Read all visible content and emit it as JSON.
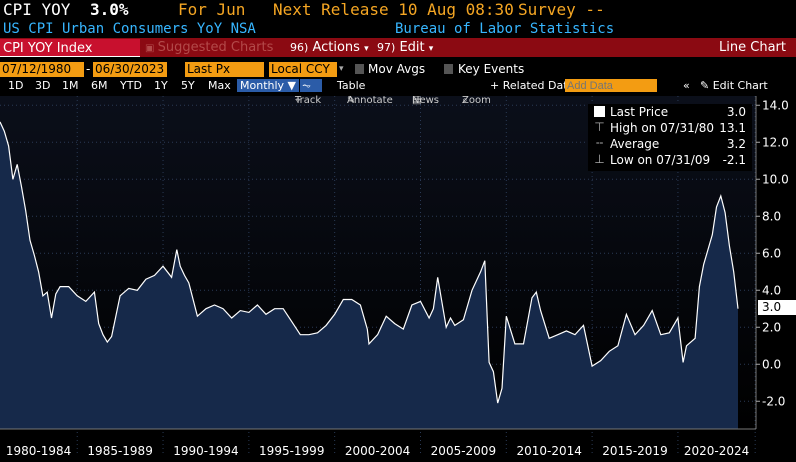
{
  "header": {
    "ticker": "CPI YOY",
    "value": "3.0%",
    "for_label": "For Jun",
    "next_release": "Next Release 10 Aug 08:30",
    "survey": "Survey --",
    "description": "US CPI Urban Consumers YoY NSA",
    "source": "Bureau of Labor Statistics"
  },
  "toolbar": {
    "security": "CPI YOY Index",
    "suggested": "Suggested Charts",
    "actions_num": "96)",
    "actions_label": "Actions",
    "edit_num": "97)",
    "edit_label": "Edit",
    "chart_type": "Line Chart"
  },
  "controls": {
    "start_date": "07/12/1980",
    "end_date": "06/30/2023",
    "field": "Last Px",
    "currency": "Local CCY",
    "mov_avgs": "Mov Avgs",
    "key_events": "Key Events"
  },
  "periods": [
    "1D",
    "3D",
    "1M",
    "6M",
    "YTD",
    "1Y",
    "5Y",
    "Max"
  ],
  "frequency": "Monthly",
  "table_label": "Table",
  "related_data": "Related Dat",
  "add_data_placeholder": "Add Data",
  "edit_chart": "Edit Chart",
  "tools": [
    "Track",
    "Annotate",
    "News",
    "Zoom"
  ],
  "legend": {
    "last_label": "Last Price",
    "last_value": "3.0",
    "high_label": "High on 07/31/80",
    "high_value": "13.1",
    "avg_label": "Average",
    "avg_value": "3.2",
    "low_label": "Low on 07/31/09",
    "low_value": "-2.1"
  },
  "last_value_tag": "3.0",
  "colors": {
    "series_line": "#ffffff",
    "series_fill": "#16294a",
    "accent_orange": "#f39c12",
    "toolbar_red": "#8b0a12",
    "header_blue": "#37b6ff",
    "header_orange": "#f5a623"
  },
  "chart_data": {
    "type": "area",
    "title": "",
    "xlabel": "",
    "ylabel": "",
    "ylim": [
      -3.5,
      14.5
    ],
    "yticks": [
      "-2.0",
      "0.0",
      "2.0",
      "4.0",
      "6.0",
      "8.0",
      "10.0",
      "12.0",
      "14.0"
    ],
    "x_labels": [
      "1980-1984",
      "1985-1989",
      "1990-1994",
      "1995-1999",
      "2000-2004",
      "2005-2009",
      "2010-2014",
      "2015-2019",
      "2020-2024"
    ],
    "x": [
      1980.5,
      1980.75,
      1981.0,
      1981.25,
      1981.5,
      1981.75,
      1982.0,
      1982.25,
      1982.5,
      1982.75,
      1983.0,
      1983.25,
      1983.5,
      1983.75,
      1984.0,
      1984.5,
      1985.0,
      1985.5,
      1986.0,
      1986.25,
      1986.5,
      1986.75,
      1987.0,
      1987.5,
      1988.0,
      1988.5,
      1989.0,
      1989.5,
      1990.0,
      1990.5,
      1990.8,
      1991.0,
      1991.25,
      1991.5,
      1992.0,
      1992.5,
      1993.0,
      1993.5,
      1994.0,
      1994.5,
      1995.0,
      1995.5,
      1996.0,
      1996.5,
      1997.0,
      1997.5,
      1998.0,
      1998.5,
      1999.0,
      1999.5,
      2000.0,
      2000.5,
      2001.0,
      2001.5,
      2001.9,
      2002.0,
      2002.5,
      2003.0,
      2003.5,
      2004.0,
      2004.5,
      2005.0,
      2005.5,
      2005.75,
      2006.0,
      2006.5,
      2006.75,
      2007.0,
      2007.5,
      2008.0,
      2008.5,
      2008.75,
      2009.0,
      2009.25,
      2009.5,
      2009.75,
      2010.0,
      2010.5,
      2011.0,
      2011.5,
      2011.75,
      2012.0,
      2012.5,
      2013.0,
      2013.5,
      2014.0,
      2014.5,
      2015.0,
      2015.5,
      2016.0,
      2016.5,
      2017.0,
      2017.5,
      2018.0,
      2018.5,
      2019.0,
      2019.5,
      2020.0,
      2020.3,
      2020.5,
      2021.0,
      2021.25,
      2021.5,
      2022.0,
      2022.25,
      2022.5,
      2022.75,
      2023.0,
      2023.25,
      2023.5
    ],
    "values": [
      13.1,
      12.6,
      11.8,
      10.0,
      10.8,
      9.6,
      8.3,
      6.7,
      5.9,
      5.0,
      3.7,
      3.9,
      2.5,
      3.8,
      4.2,
      4.2,
      3.7,
      3.4,
      3.9,
      2.2,
      1.6,
      1.2,
      1.5,
      3.7,
      4.1,
      4.0,
      4.6,
      4.8,
      5.3,
      4.7,
      6.2,
      5.3,
      4.8,
      4.4,
      2.6,
      3.0,
      3.2,
      3.0,
      2.5,
      2.9,
      2.8,
      3.2,
      2.7,
      3.0,
      3.0,
      2.3,
      1.6,
      1.6,
      1.7,
      2.1,
      2.7,
      3.5,
      3.5,
      3.2,
      1.9,
      1.1,
      1.6,
      2.6,
      2.2,
      1.9,
      3.2,
      3.4,
      2.5,
      3.0,
      4.7,
      2.0,
      2.5,
      2.1,
      2.4,
      4.0,
      5.0,
      5.6,
      0.1,
      -0.4,
      -2.1,
      -1.3,
      2.6,
      1.1,
      1.1,
      3.6,
      3.9,
      2.9,
      1.4,
      1.6,
      1.8,
      1.6,
      2.1,
      -0.1,
      0.2,
      0.7,
      1.0,
      2.7,
      1.6,
      2.1,
      2.9,
      1.6,
      1.7,
      2.5,
      0.1,
      1.0,
      1.4,
      4.2,
      5.4,
      7.0,
      8.5,
      9.1,
      8.2,
      6.4,
      5.0,
      3.0
    ]
  }
}
